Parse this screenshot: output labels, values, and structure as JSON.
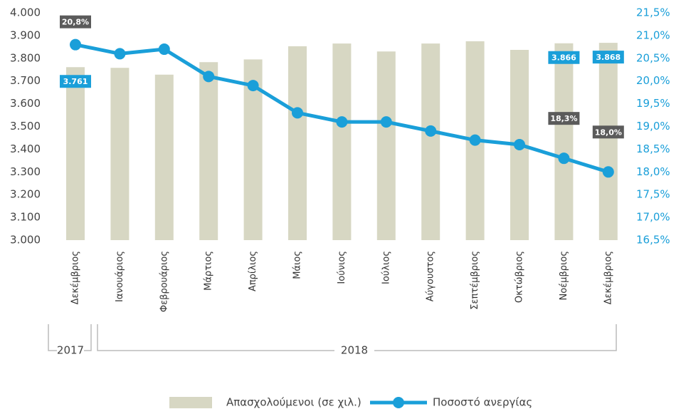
{
  "chart_data": {
    "type": "bar",
    "categories": [
      "Δεκέμβριος",
      "Ιανουάριος",
      "Φεβρουάριος",
      "Μάρτιος",
      "Απρίλιος",
      "Μάιος",
      "Ιούνιος",
      "Ιούλιος",
      "Αύγουστος",
      "Σεπτέμβριος",
      "Οκτώβριος",
      "Νοέμβριος",
      "Δεκέμβριος"
    ],
    "annotations": [
      "2017",
      "2018"
    ],
    "series": [
      {
        "name": "Απασχολούμενοι (σε χιλ.)",
        "type": "bar",
        "color": "#d7d7c3",
        "values": [
          3761,
          3758,
          3728,
          3783,
          3795,
          3853,
          3865,
          3830,
          3865,
          3875,
          3837,
          3866,
          3868
        ],
        "value_labels": [
          "3.761",
          null,
          null,
          null,
          null,
          null,
          null,
          null,
          null,
          null,
          null,
          "3.866",
          "3.868"
        ]
      },
      {
        "name": "Ποσοστό ανεργίας",
        "type": "line",
        "axis": "y2",
        "color": "#1a9fd9",
        "values": [
          20.8,
          20.6,
          20.7,
          20.1,
          19.9,
          19.3,
          19.1,
          19.1,
          18.9,
          18.7,
          18.6,
          18.3,
          18.0
        ],
        "value_labels": [
          "20,8%",
          null,
          null,
          null,
          null,
          null,
          null,
          null,
          null,
          null,
          null,
          "18,3%",
          "18,0%"
        ]
      }
    ],
    "ylim": [
      3000,
      4000
    ],
    "yticks": [
      {
        "value": 3000,
        "label": "3.000"
      },
      {
        "value": 3100,
        "label": "3.100"
      },
      {
        "value": 3200,
        "label": "3.200"
      },
      {
        "value": 3300,
        "label": "3.300"
      },
      {
        "value": 3400,
        "label": "3.400"
      },
      {
        "value": 3500,
        "label": "3.500"
      },
      {
        "value": 3600,
        "label": "3.600"
      },
      {
        "value": 3700,
        "label": "3.700"
      },
      {
        "value": 3800,
        "label": "3.800"
      },
      {
        "value": 3900,
        "label": "3.900"
      },
      {
        "value": 4000,
        "label": "4.000"
      }
    ],
    "y2lim": [
      16.5,
      21.5
    ],
    "y2ticks": [
      {
        "value": 16.5,
        "label": "16,5%"
      },
      {
        "value": 17,
        "label": "17,0%"
      },
      {
        "value": 17.5,
        "label": "17,5%"
      },
      {
        "value": 18,
        "label": "18,0%"
      },
      {
        "value": 18.5,
        "label": "18,5%"
      },
      {
        "value": 19,
        "label": "19,0%"
      },
      {
        "value": 19.5,
        "label": "19,5%"
      },
      {
        "value": 20,
        "label": "20,0%"
      },
      {
        "value": 20.5,
        "label": "20,5%"
      },
      {
        "value": 21,
        "label": "21,0%"
      },
      {
        "value": 21.5,
        "label": "21,5%"
      }
    ],
    "y2color": "#1a9fd9",
    "legend": "bottom"
  }
}
